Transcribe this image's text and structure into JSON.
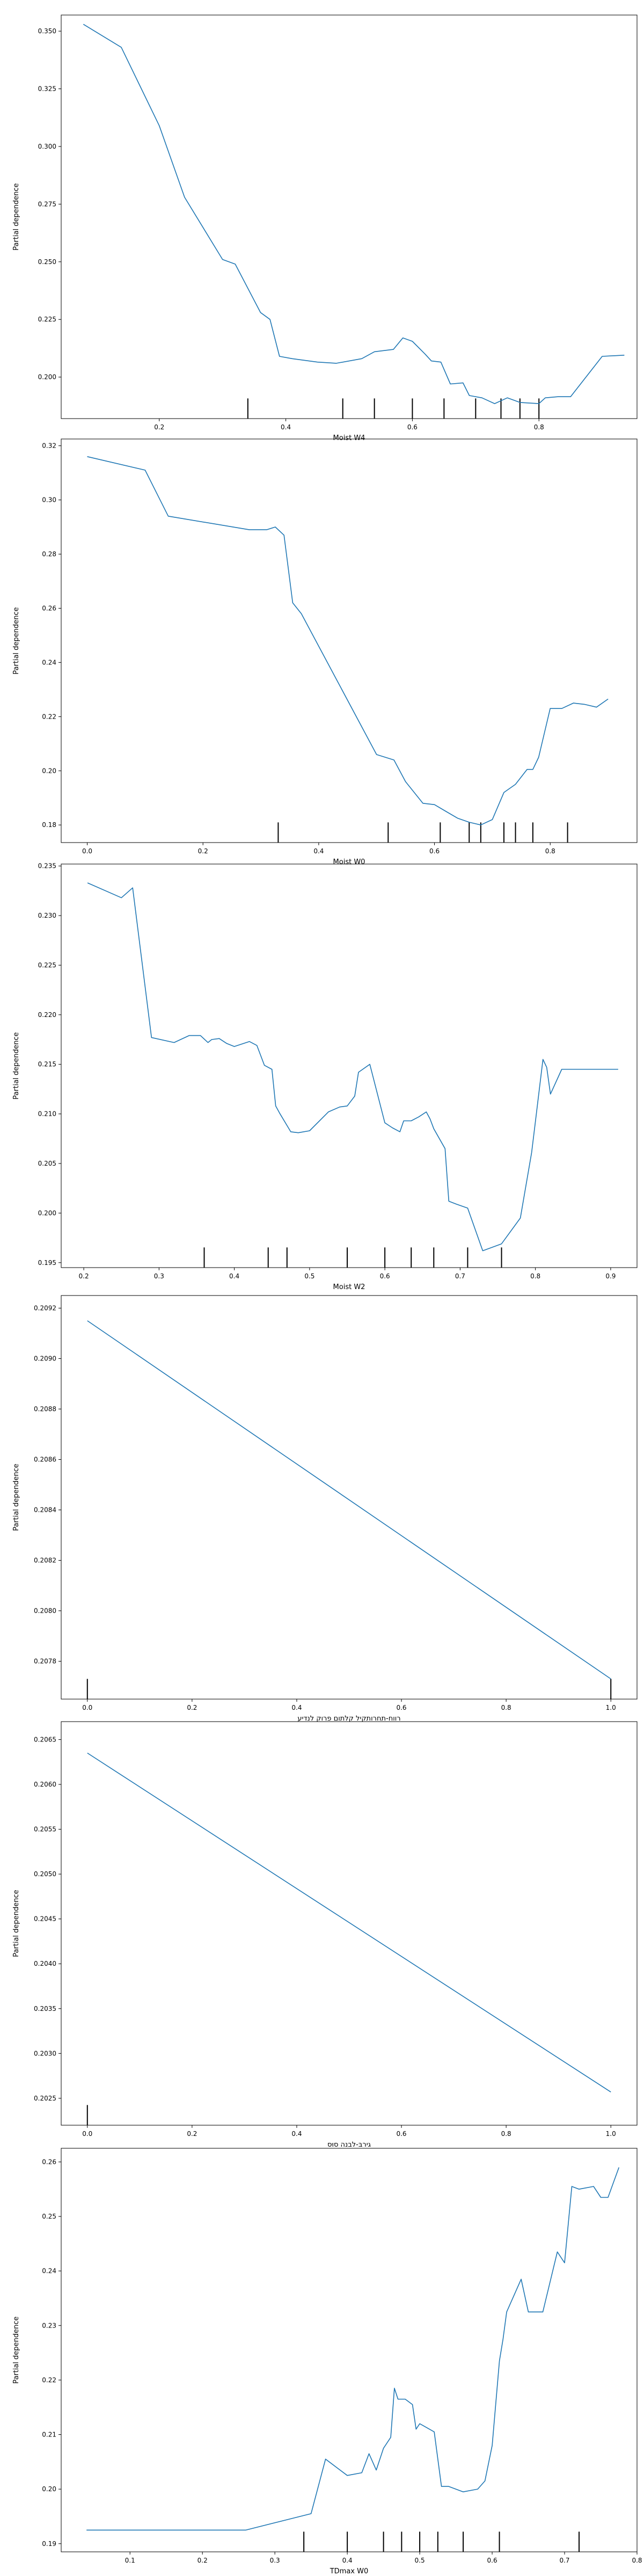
{
  "chart_data": [
    {
      "type": "line",
      "xlabel": "Moist W4",
      "ylabel": "Partial dependence",
      "xlim": [
        0.045,
        0.955
      ],
      "ylim": [
        0.182,
        0.357
      ],
      "xticks": [
        0.2,
        0.4,
        0.6,
        0.8
      ],
      "yticks": [
        0.2,
        0.225,
        0.25,
        0.275,
        0.3,
        0.325,
        0.35
      ],
      "ytick_decimals": 3,
      "x": [
        0.08,
        0.14,
        0.2,
        0.24,
        0.3,
        0.32,
        0.36,
        0.375,
        0.39,
        0.41,
        0.45,
        0.48,
        0.52,
        0.54,
        0.57,
        0.585,
        0.6,
        0.62,
        0.63,
        0.645,
        0.66,
        0.68,
        0.69,
        0.71,
        0.73,
        0.75,
        0.77,
        0.8,
        0.81,
        0.83,
        0.85,
        0.9,
        0.935
      ],
      "y": [
        0.353,
        0.343,
        0.309,
        0.278,
        0.251,
        0.249,
        0.228,
        0.225,
        0.209,
        0.208,
        0.2065,
        0.206,
        0.208,
        0.211,
        0.212,
        0.217,
        0.2155,
        0.21,
        0.207,
        0.2065,
        0.197,
        0.1975,
        0.192,
        0.191,
        0.1885,
        0.191,
        0.189,
        0.1885,
        0.191,
        0.1915,
        0.1915,
        0.209,
        0.2095
      ],
      "deciles": [
        0.34,
        0.49,
        0.54,
        0.6,
        0.65,
        0.7,
        0.74,
        0.77,
        0.8
      ]
    },
    {
      "type": "line",
      "xlabel": "Moist W0",
      "ylabel": "Partial dependence",
      "xlim": [
        -0.045,
        0.95
      ],
      "ylim": [
        0.1735,
        0.3225
      ],
      "xticks": [
        0.0,
        0.2,
        0.4,
        0.6,
        0.8
      ],
      "yticks": [
        0.18,
        0.2,
        0.22,
        0.24,
        0.26,
        0.28,
        0.3,
        0.32
      ],
      "ytick_decimals": 2,
      "x": [
        0.0,
        0.1,
        0.14,
        0.28,
        0.31,
        0.325,
        0.34,
        0.355,
        0.37,
        0.5,
        0.53,
        0.55,
        0.58,
        0.6,
        0.62,
        0.64,
        0.66,
        0.68,
        0.7,
        0.72,
        0.74,
        0.76,
        0.77,
        0.78,
        0.8,
        0.82,
        0.84,
        0.86,
        0.88,
        0.9
      ],
      "y": [
        0.316,
        0.311,
        0.294,
        0.289,
        0.289,
        0.29,
        0.287,
        0.262,
        0.258,
        0.206,
        0.204,
        0.196,
        0.188,
        0.1875,
        0.185,
        0.1825,
        0.181,
        0.18,
        0.182,
        0.192,
        0.195,
        0.2005,
        0.2005,
        0.205,
        0.223,
        0.223,
        0.225,
        0.2245,
        0.2235,
        0.2265
      ],
      "deciles": [
        0.33,
        0.52,
        0.61,
        0.66,
        0.68,
        0.72,
        0.74,
        0.77,
        0.83
      ]
    },
    {
      "type": "line",
      "xlabel": "Moist W2",
      "ylabel": "Partial dependence",
      "xlim": [
        0.17,
        0.935
      ],
      "ylim": [
        0.1945,
        0.2352
      ],
      "xticks": [
        0.2,
        0.3,
        0.4,
        0.5,
        0.6,
        0.7,
        0.8,
        0.9
      ],
      "yticks": [
        0.195,
        0.2,
        0.205,
        0.21,
        0.215,
        0.22,
        0.225,
        0.23,
        0.235
      ],
      "ytick_decimals": 3,
      "x": [
        0.205,
        0.25,
        0.265,
        0.29,
        0.32,
        0.34,
        0.355,
        0.365,
        0.37,
        0.38,
        0.39,
        0.4,
        0.42,
        0.43,
        0.44,
        0.45,
        0.455,
        0.46,
        0.475,
        0.485,
        0.5,
        0.525,
        0.54,
        0.55,
        0.56,
        0.565,
        0.58,
        0.6,
        0.61,
        0.62,
        0.625,
        0.635,
        0.645,
        0.655,
        0.66,
        0.665,
        0.68,
        0.685,
        0.695,
        0.71,
        0.73,
        0.755,
        0.78,
        0.795,
        0.8,
        0.81,
        0.815,
        0.82,
        0.835,
        0.91
      ],
      "y": [
        0.2333,
        0.2318,
        0.2328,
        0.2177,
        0.2172,
        0.2179,
        0.2179,
        0.2172,
        0.2175,
        0.2176,
        0.2171,
        0.2168,
        0.2173,
        0.2169,
        0.2149,
        0.2145,
        0.2108,
        0.2101,
        0.2082,
        0.2081,
        0.2083,
        0.2102,
        0.2107,
        0.2108,
        0.2118,
        0.2142,
        0.215,
        0.2091,
        0.2086,
        0.2082,
        0.2093,
        0.2093,
        0.2097,
        0.2102,
        0.2095,
        0.2085,
        0.2065,
        0.2012,
        0.2009,
        0.2005,
        0.1962,
        0.1969,
        0.1995,
        0.2061,
        0.2092,
        0.2155,
        0.2147,
        0.212,
        0.2145,
        0.2145
      ],
      "deciles": [
        0.36,
        0.445,
        0.47,
        0.55,
        0.6,
        0.635,
        0.665,
        0.71,
        0.755
      ]
    },
    {
      "type": "line",
      "xlabel": "רווח-תחרותקיל קלתום פרוק לנדיע",
      "ylabel": "Partial dependence",
      "xlim": [
        -0.05,
        1.05
      ],
      "ylim": [
        0.20765,
        0.20925
      ],
      "xticks": [
        0.0,
        0.2,
        0.4,
        0.6,
        0.8,
        1.0
      ],
      "yticks": [
        0.2078,
        0.208,
        0.2082,
        0.2084,
        0.2086,
        0.2088,
        0.209,
        0.2092
      ],
      "ytick_decimals": 4,
      "x": [
        0.0,
        1.0
      ],
      "y": [
        0.20915,
        0.20773
      ],
      "deciles": [
        0.0,
        1.0
      ]
    },
    {
      "type": "line",
      "xlabel": "גירבּ-לבנה סוּס",
      "ylabel": "Partial dependence",
      "xlim": [
        -0.05,
        1.05
      ],
      "ylim": [
        0.2022,
        0.2067
      ],
      "xticks": [
        0.0,
        0.2,
        0.4,
        0.6,
        0.8,
        1.0
      ],
      "yticks": [
        0.2025,
        0.203,
        0.2035,
        0.204,
        0.2045,
        0.205,
        0.2055,
        0.206,
        0.2065
      ],
      "ytick_decimals": 4,
      "x": [
        0.0,
        1.0
      ],
      "y": [
        0.20635,
        0.20257
      ],
      "deciles": [
        0.0
      ]
    },
    {
      "type": "line",
      "xlabel": "TDmax W0",
      "ylabel": "Partial dependence",
      "xlim": [
        0.005,
        0.8
      ],
      "ylim": [
        0.1885,
        0.2625
      ],
      "xticks": [
        0.1,
        0.2,
        0.3,
        0.4,
        0.5,
        0.6,
        0.7,
        0.8
      ],
      "yticks": [
        0.19,
        0.2,
        0.21,
        0.22,
        0.23,
        0.24,
        0.25,
        0.26
      ],
      "ytick_decimals": 2,
      "x": [
        0.04,
        0.26,
        0.32,
        0.35,
        0.37,
        0.4,
        0.42,
        0.43,
        0.44,
        0.45,
        0.46,
        0.465,
        0.47,
        0.48,
        0.49,
        0.495,
        0.5,
        0.52,
        0.53,
        0.54,
        0.56,
        0.58,
        0.59,
        0.6,
        0.61,
        0.615,
        0.62,
        0.64,
        0.65,
        0.67,
        0.69,
        0.7,
        0.71,
        0.72,
        0.74,
        0.75,
        0.76,
        0.775
      ],
      "y": [
        0.1925,
        0.1925,
        0.1945,
        0.1955,
        0.2055,
        0.2025,
        0.203,
        0.2065,
        0.2035,
        0.2075,
        0.2095,
        0.2185,
        0.2165,
        0.2165,
        0.2155,
        0.211,
        0.212,
        0.2105,
        0.2005,
        0.2005,
        0.1995,
        0.2,
        0.2015,
        0.208,
        0.2235,
        0.2275,
        0.2325,
        0.2385,
        0.2325,
        0.2325,
        0.2435,
        0.2415,
        0.2555,
        0.255,
        0.2555,
        0.2535,
        0.2535,
        0.259
      ],
      "deciles": [
        0.34,
        0.4,
        0.45,
        0.475,
        0.5,
        0.525,
        0.56,
        0.61,
        0.72
      ]
    }
  ],
  "colors": {
    "line": "#1f77b4",
    "axis": "#000000",
    "decile": "#000000"
  }
}
